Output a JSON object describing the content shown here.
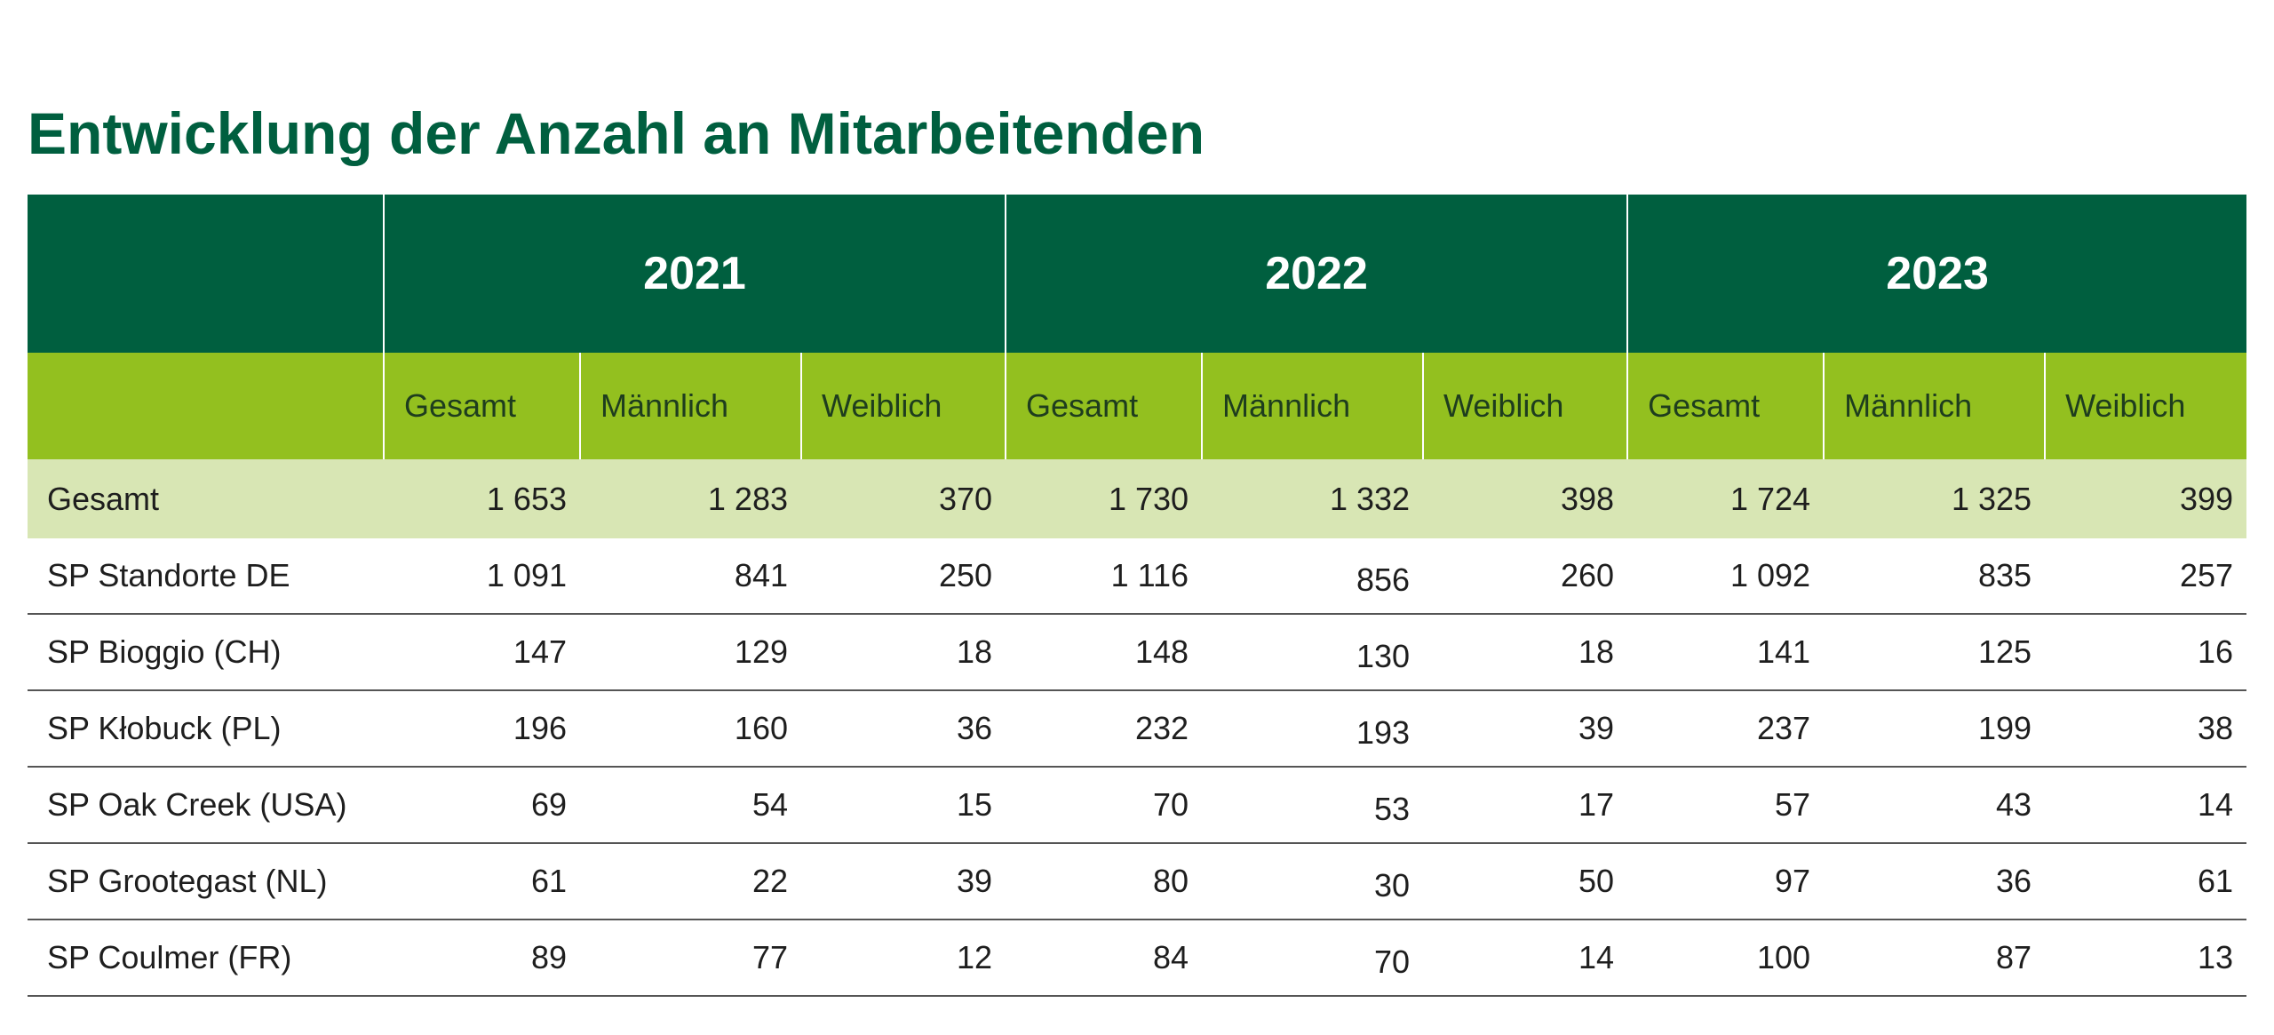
{
  "title": "Entwicklung der Anzahl an Mitarbeitenden",
  "years": [
    "2021",
    "2022",
    "2023"
  ],
  "subheaders": [
    "Gesamt",
    "Männlich",
    "Weiblich"
  ],
  "rows": [
    {
      "label": "Gesamt",
      "values": [
        "1 653",
        "1 283",
        "370",
        "1 730",
        "1 332",
        "398",
        "1 724",
        "1 325",
        "399"
      ]
    },
    {
      "label": "SP Standorte DE",
      "values": [
        "1 091",
        "841",
        "250",
        "1 116",
        "856",
        "260",
        "1 092",
        "835",
        "257"
      ]
    },
    {
      "label": "SP Bioggio (CH)",
      "values": [
        "147",
        "129",
        "18",
        "148",
        "130",
        "18",
        "141",
        "125",
        "16"
      ]
    },
    {
      "label": "SP Kłobuck (PL)",
      "values": [
        "196",
        "160",
        "36",
        "232",
        "193",
        "39",
        "237",
        "199",
        "38"
      ]
    },
    {
      "label": "SP Oak Creek (USA)",
      "values": [
        "69",
        "54",
        "15",
        "70",
        "53",
        "17",
        "57",
        "43",
        "14"
      ]
    },
    {
      "label": "SP Grootegast (NL)",
      "values": [
        "61",
        "22",
        "39",
        "80",
        "30",
        "50",
        "97",
        "36",
        "61"
      ]
    },
    {
      "label": "SP Coulmer (FR)",
      "values": [
        "89",
        "77",
        "12",
        "84",
        "70",
        "14",
        "100",
        "87",
        "13"
      ]
    }
  ],
  "colors": {
    "title": "#005f3f",
    "header_dark": "#005f3f",
    "header_light": "#93c01f",
    "total_row": "#d8e6b4"
  }
}
